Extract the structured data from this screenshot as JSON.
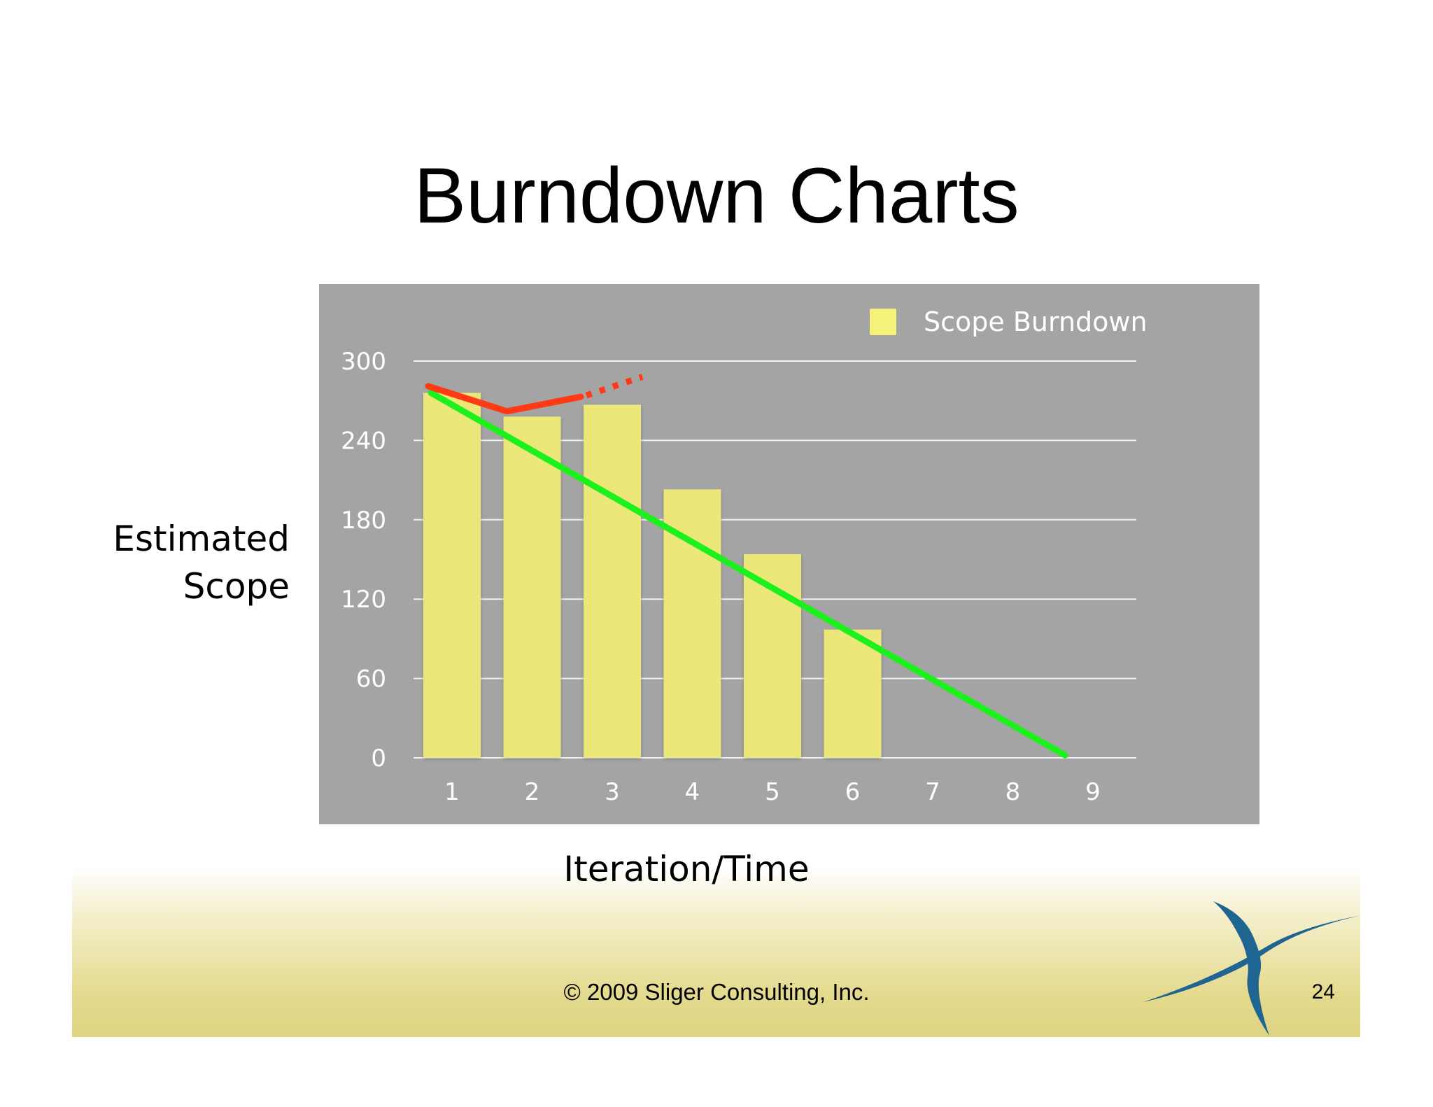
{
  "slide": {
    "title": "Burndown Charts",
    "ylabel": "Estimated\nScope",
    "xlabel": "Iteration/Time",
    "copyright": "© 2009 Sliger Consulting, Inc.",
    "page_number": "24"
  },
  "colors": {
    "chart_background": "#a5a4a5",
    "bar_fill": "#ebe778",
    "legend_swatch": "#f5f27a",
    "ideal_line": "#1ef01e",
    "actual_line": "#ff3a14",
    "gridline": "#f2f2f2",
    "axis_text": "#ffffff",
    "logo": "#1f6591"
  },
  "chart_data": {
    "type": "bar",
    "title": "",
    "xlabel": "Iteration/Time",
    "ylabel": "Estimated Scope",
    "categories": [
      "1",
      "2",
      "3",
      "4",
      "5",
      "6",
      "7",
      "8",
      "9"
    ],
    "series": [
      {
        "name": "Scope Burndown",
        "values": [
          276,
          258,
          267,
          203,
          154,
          97,
          null,
          null,
          null
        ]
      }
    ],
    "yticks": [
      "0",
      "60",
      "120",
      "180",
      "240",
      "300"
    ],
    "ylim": [
      0,
      300
    ],
    "grid": true,
    "legend": "top-right",
    "annotations": {
      "ideal_line": {
        "type": "line",
        "from": {
          "x": 1,
          "y": 276
        },
        "to": {
          "x": 9,
          "y": 2
        }
      },
      "actual_trend": {
        "type": "line",
        "points": [
          {
            "x": 1,
            "y": 281
          },
          {
            "x": 2,
            "y": 262
          },
          {
            "x": 3,
            "y": 273
          }
        ],
        "projection": {
          "from": {
            "x": 3,
            "y": 273
          },
          "to": {
            "x": 3.9,
            "y": 286
          },
          "style": "dotted"
        }
      }
    }
  }
}
